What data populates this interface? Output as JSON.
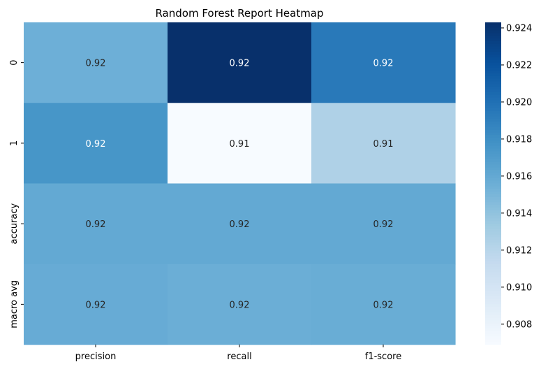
{
  "chart_data": {
    "type": "heatmap",
    "title": "Random Forest Report Heatmap",
    "xlabel": "",
    "ylabel": "",
    "columns": [
      "precision",
      "recall",
      "f1-score"
    ],
    "rows": [
      "0",
      "1",
      "accuracy",
      "macro avg"
    ],
    "values": [
      [
        0.9155,
        0.9243,
        0.9194
      ],
      [
        0.9175,
        0.9069,
        0.9125
      ],
      [
        0.916,
        0.916,
        0.916
      ],
      [
        0.9158,
        0.9156,
        0.9157
      ]
    ],
    "annotations": [
      [
        "0.92",
        "0.92",
        "0.92"
      ],
      [
        "0.92",
        "0.91",
        "0.91"
      ],
      [
        "0.92",
        "0.92",
        "0.92"
      ],
      [
        "0.92",
        "0.92",
        "0.92"
      ]
    ],
    "colormap": "Blues",
    "colorbar": {
      "range": [
        0.9069,
        0.9243
      ],
      "ticks": [
        0.908,
        0.91,
        0.912,
        0.914,
        0.916,
        0.918,
        0.92,
        0.922,
        0.924
      ],
      "tick_labels": [
        "0.908",
        "0.910",
        "0.912",
        "0.914",
        "0.916",
        "0.918",
        "0.920",
        "0.922",
        "0.924"
      ],
      "placement": "right"
    },
    "grid": false
  }
}
